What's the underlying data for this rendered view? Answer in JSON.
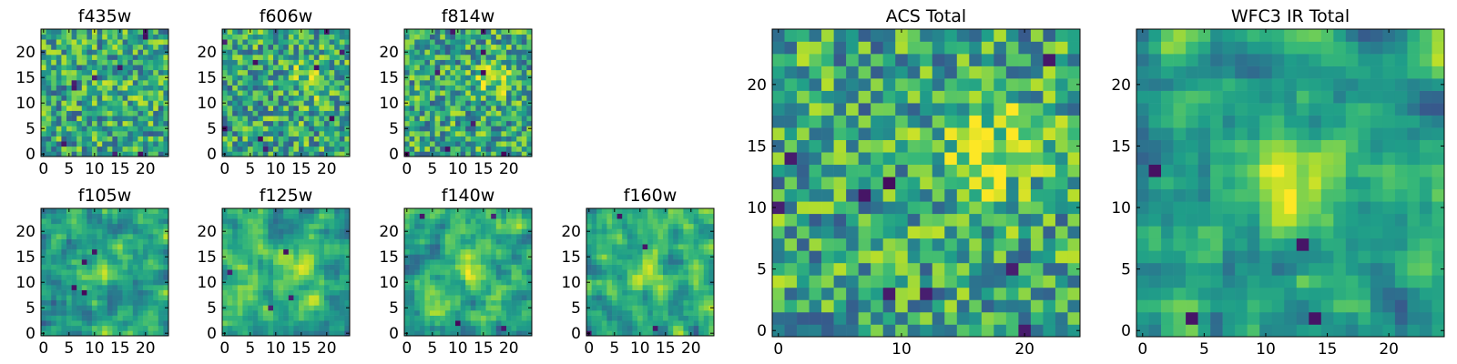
{
  "chart_data": [
    {
      "type": "heatmap",
      "title": "f435w",
      "grid": 25,
      "xticks": [
        0,
        5,
        10,
        15,
        20
      ],
      "yticks": [
        0,
        5,
        10,
        15,
        20
      ],
      "xlim": [
        0,
        25
      ],
      "ylim": [
        0,
        25
      ],
      "pattern": "noise",
      "seed": 11,
      "source": {
        "x": 15,
        "y": 14,
        "amp": 0.1
      }
    },
    {
      "type": "heatmap",
      "title": "f606w",
      "grid": 25,
      "xticks": [
        0,
        5,
        10,
        15,
        20
      ],
      "yticks": [
        0,
        5,
        10,
        15,
        20
      ],
      "xlim": [
        0,
        25
      ],
      "ylim": [
        0,
        25
      ],
      "pattern": "noise",
      "seed": 23,
      "source": {
        "x": 17,
        "y": 15,
        "amp": 0.22
      }
    },
    {
      "type": "heatmap",
      "title": "f814w",
      "grid": 25,
      "xticks": [
        0,
        5,
        10,
        15,
        20
      ],
      "yticks": [
        0,
        5,
        10,
        15,
        20
      ],
      "xlim": [
        0,
        25
      ],
      "ylim": [
        0,
        25
      ],
      "pattern": "noise",
      "seed": 37,
      "source": {
        "x": 17,
        "y": 15,
        "amp": 0.25
      }
    },
    {
      "type": "heatmap",
      "title": "f105w",
      "grid": 25,
      "xticks": [
        0,
        5,
        10,
        15,
        20
      ],
      "yticks": [
        0,
        5,
        10,
        15,
        20
      ],
      "xlim": [
        0,
        25
      ],
      "ylim": [
        0,
        25
      ],
      "pattern": "smooth",
      "seed": 41,
      "source": {
        "x": 12,
        "y": 13,
        "amp": 0.25
      }
    },
    {
      "type": "heatmap",
      "title": "f125w",
      "grid": 25,
      "xticks": [
        0,
        5,
        10,
        15,
        20
      ],
      "yticks": [
        0,
        5,
        10,
        15,
        20
      ],
      "xlim": [
        0,
        25
      ],
      "ylim": [
        0,
        25
      ],
      "pattern": "smooth",
      "seed": 53,
      "source": {
        "x": 15,
        "y": 12,
        "amp": 0.25
      }
    },
    {
      "type": "heatmap",
      "title": "f140w",
      "grid": 25,
      "xticks": [
        0,
        5,
        10,
        15,
        20
      ],
      "yticks": [
        0,
        5,
        10,
        15,
        20
      ],
      "xlim": [
        0,
        25
      ],
      "ylim": [
        0,
        25
      ],
      "pattern": "smooth",
      "seed": 67,
      "source": {
        "x": 12,
        "y": 14,
        "amp": 0.25
      }
    },
    {
      "type": "heatmap",
      "title": "f160w",
      "grid": 25,
      "xticks": [
        0,
        5,
        10,
        15,
        20
      ],
      "yticks": [
        0,
        5,
        10,
        15,
        20
      ],
      "xlim": [
        0,
        25
      ],
      "ylim": [
        0,
        25
      ],
      "pattern": "smooth",
      "seed": 79,
      "source": {
        "x": 11,
        "y": 12,
        "amp": 0.28
      }
    },
    {
      "type": "heatmap",
      "title": "ACS Total",
      "grid": 25,
      "xticks": [
        0,
        10,
        20
      ],
      "yticks": [
        0,
        5,
        10,
        15,
        20
      ],
      "xlim": [
        0,
        25
      ],
      "ylim": [
        0,
        25
      ],
      "pattern": "noise",
      "seed": 97,
      "source": {
        "x": 17,
        "y": 15,
        "amp": 0.32
      }
    },
    {
      "type": "heatmap",
      "title": "WFC3 IR Total",
      "grid": 25,
      "xticks": [
        0,
        5,
        10,
        15,
        20
      ],
      "yticks": [
        0,
        5,
        10,
        15,
        20
      ],
      "xlim": [
        0,
        25
      ],
      "ylim": [
        0,
        25
      ],
      "pattern": "smooth",
      "seed": 113,
      "source": {
        "x": 12,
        "y": 12,
        "amp": 0.35
      }
    }
  ],
  "colors": {
    "viridis": [
      "#440154",
      "#482878",
      "#3e4989",
      "#31688e",
      "#26828e",
      "#1f9e89",
      "#35b779",
      "#6ece58",
      "#b5de2b",
      "#fde725"
    ],
    "frame": "#000000"
  }
}
